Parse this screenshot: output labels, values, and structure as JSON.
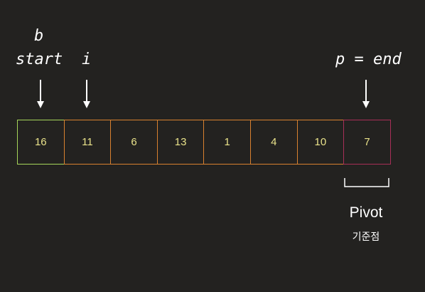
{
  "pointers": {
    "b": "b",
    "start": "start",
    "i": "i",
    "p_end": "p = end"
  },
  "array": {
    "cells": [
      {
        "value": "16",
        "border": "#a6d65a"
      },
      {
        "value": "11",
        "border": "#d9812f"
      },
      {
        "value": "6",
        "border": "#d9812f"
      },
      {
        "value": "13",
        "border": "#d9812f"
      },
      {
        "value": "1",
        "border": "#d9812f"
      },
      {
        "value": "4",
        "border": "#d9812f"
      },
      {
        "value": "10",
        "border": "#d9812f"
      },
      {
        "value": "7",
        "border": "#a82f57"
      }
    ],
    "value_color": "#e9e28a"
  },
  "pivot": {
    "title": "Pivot",
    "subtitle": "기준점"
  },
  "colors": {
    "background": "#232220",
    "arrow": "#ffffff"
  }
}
